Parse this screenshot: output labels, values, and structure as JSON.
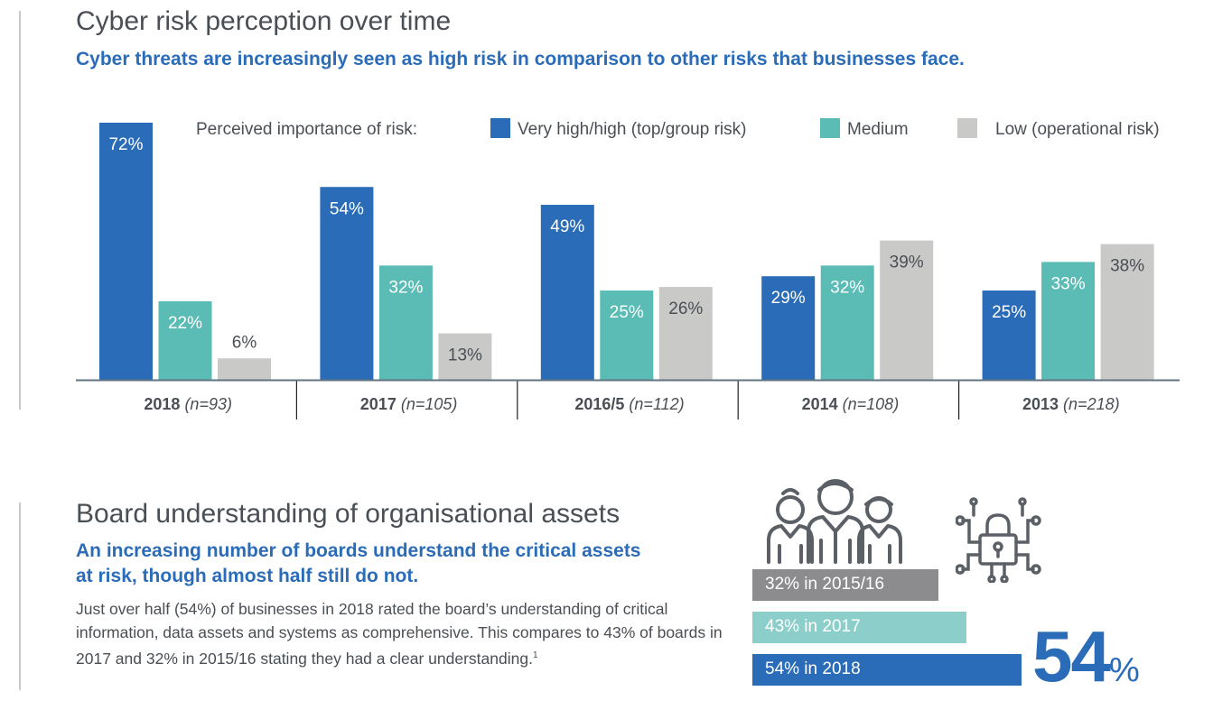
{
  "section1": {
    "title": "Cyber risk perception over time",
    "subtitle": "Cyber threats are increasingly seen as high risk in comparison to other risks that businesses face."
  },
  "chart_data": {
    "type": "bar",
    "legend_title": "Perceived importance of risk:",
    "legend_placement": "top",
    "categories": [
      {
        "year": "2018",
        "n": "(n=93)"
      },
      {
        "year": "2017",
        "n": "(n=105)"
      },
      {
        "year": "2016/5",
        "n": "(n=112)"
      },
      {
        "year": "2014",
        "n": "(n=108)"
      },
      {
        "year": "2013",
        "n": "(n=218)"
      }
    ],
    "series": [
      {
        "name": "Very high/high (top/group risk)",
        "color": "#2b6cb8",
        "values": [
          72,
          54,
          49,
          29,
          25
        ]
      },
      {
        "name": "Medium",
        "color": "#5bbcb5",
        "values": [
          22,
          32,
          25,
          32,
          33
        ]
      },
      {
        "name": "Low (operational risk)",
        "color": "#c9c9c7",
        "values": [
          6,
          13,
          26,
          39,
          38
        ]
      }
    ],
    "value_suffix": "%",
    "ylim": [
      0,
      72
    ],
    "grid": false
  },
  "section2": {
    "title": "Board understanding of organisational assets",
    "subtitle_line1": "An increasing number of boards understand the critical assets",
    "subtitle_line2": "at risk, though almost half still do not.",
    "body": "Just over half (54%) of businesses in 2018 rated the board’s understanding of critical information, data assets and systems as comprehensive. This compares to 43% of boards in 2017 and 32% in 2015/16 stating they had a clear understanding.",
    "footnote": "1",
    "bars": [
      {
        "label": "32% in 2015/16",
        "value": 32,
        "color": "#8c8c8e"
      },
      {
        "label": "43% in 2017",
        "value": 43,
        "color": "#8ccfca"
      },
      {
        "label": "54% in 2018",
        "value": 54,
        "color": "#2b6cb8"
      }
    ],
    "big_value": "54",
    "big_suffix": "%",
    "icons": [
      "people-group-icon",
      "padlock-circuit-icon"
    ]
  }
}
